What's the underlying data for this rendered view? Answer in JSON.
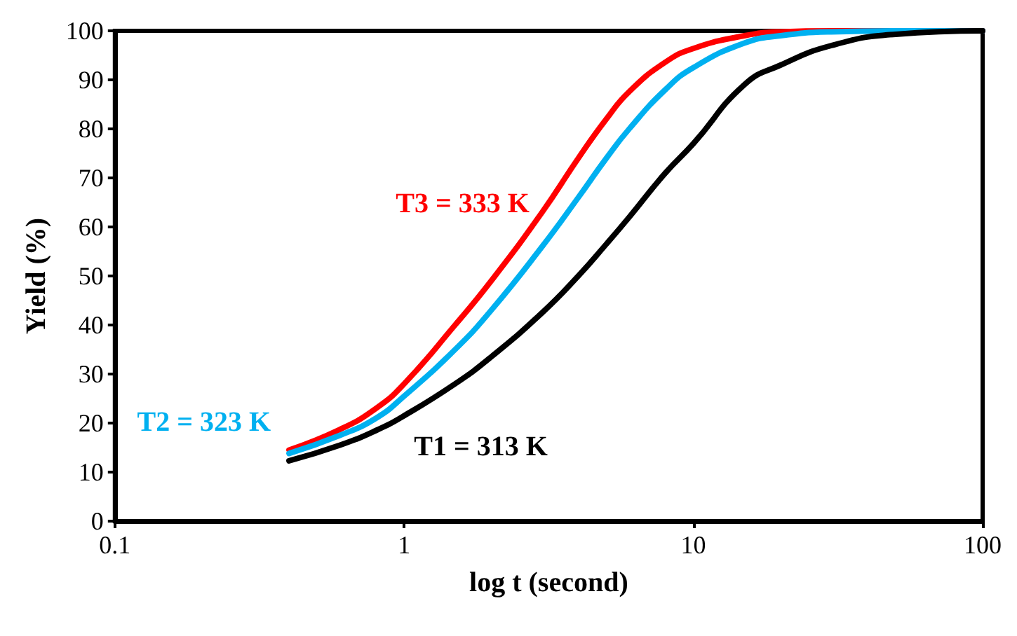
{
  "chart_data": {
    "type": "line",
    "xlabel": "log t (second)",
    "ylabel": "Yield (%)",
    "log": "x",
    "xlim": [
      0.1,
      100
    ],
    "xticks": [
      0.1,
      1,
      10,
      100
    ],
    "ylim": [
      0,
      100
    ],
    "yticks": [
      0,
      10,
      20,
      30,
      40,
      50,
      60,
      70,
      80,
      90,
      100
    ],
    "grid": false,
    "marker": "none",
    "line_style": "solid",
    "x": [
      0.4,
      0.6,
      0.8,
      1,
      1.5,
      2,
      3,
      4,
      5,
      6,
      8,
      10,
      15,
      20,
      30,
      50,
      100
    ],
    "series": [
      {
        "name": "T3 = 333 K",
        "color": "#ff0000",
        "values": [
          14.5,
          18.7,
          23,
          28,
          40,
          49,
          63,
          74,
          82,
          87.6,
          93.6,
          96.4,
          99,
          99.8,
          100,
          100,
          100
        ]
      },
      {
        "name": "T2 = 323 K",
        "color": "#00b0f0",
        "values": [
          13.8,
          17.5,
          21,
          25.5,
          35,
          43,
          56,
          66,
          74,
          80,
          88,
          92.5,
          97.5,
          99,
          99.8,
          100,
          100
        ]
      },
      {
        "name": "T1 = 313 K",
        "color": "#000000",
        "values": [
          12.3,
          15.5,
          18.5,
          21.5,
          28,
          33.5,
          42.5,
          50,
          56.5,
          62,
          71,
          77,
          89,
          93,
          97,
          99.3,
          100
        ]
      }
    ]
  }
}
